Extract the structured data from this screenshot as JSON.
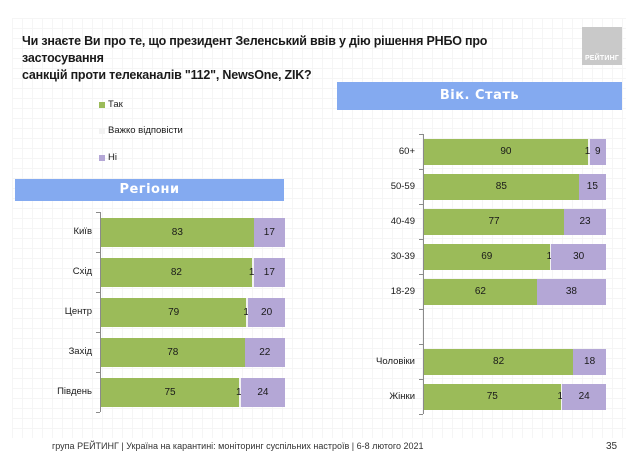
{
  "title": {
    "line1": "Чи знаєте Ви про те, що президент Зеленський ввів у дію рішення РНБО про застосування",
    "line2": "санкцій проти телеканалів \"112\", NewsOne, ZIK?"
  },
  "logo": {
    "text": "РЕЙТИНГ"
  },
  "footer": {
    "text": "група РЕЙТИНГ | Україна на карантині: моніторинг суспільних настроїв | 6-8 лютого 2021",
    "page_number": "35"
  },
  "colors": {
    "yes": "#9bbb59",
    "hard": "#f2f2f2",
    "no": "#b4a7d6",
    "banner": "#84aaf0"
  },
  "chart_data": [
    {
      "type": "bar",
      "orientation": "horizontal",
      "stacked": true,
      "title": "Регіони",
      "legend": [
        "Так",
        "Важко відповісти",
        "Ні"
      ],
      "legend_placement": "top-left",
      "categories": [
        "Київ",
        "Схід",
        "Центр",
        "Захід",
        "Південь"
      ],
      "series": [
        {
          "name": "Так",
          "values": [
            83,
            82,
            79,
            78,
            75
          ]
        },
        {
          "name": "Важко відповісти",
          "values": [
            0,
            1,
            1,
            0,
            1
          ]
        },
        {
          "name": "Ні",
          "values": [
            17,
            17,
            20,
            22,
            24
          ]
        }
      ],
      "xlim": [
        0,
        100
      ]
    },
    {
      "type": "bar",
      "orientation": "horizontal",
      "stacked": true,
      "title": "Вік. Стать",
      "categories": [
        "60+",
        "50-59",
        "40-49",
        "30-39",
        "18-29",
        "",
        "Чоловіки",
        "Жінки"
      ],
      "series": [
        {
          "name": "Так",
          "values": [
            90,
            85,
            77,
            69,
            62,
            null,
            82,
            75
          ]
        },
        {
          "name": "Важко відповісти",
          "values": [
            1,
            0,
            0,
            1,
            0,
            null,
            0,
            1
          ]
        },
        {
          "name": "Ні",
          "values": [
            9,
            15,
            23,
            30,
            38,
            null,
            18,
            24
          ]
        }
      ],
      "xlim": [
        0,
        100
      ]
    }
  ]
}
